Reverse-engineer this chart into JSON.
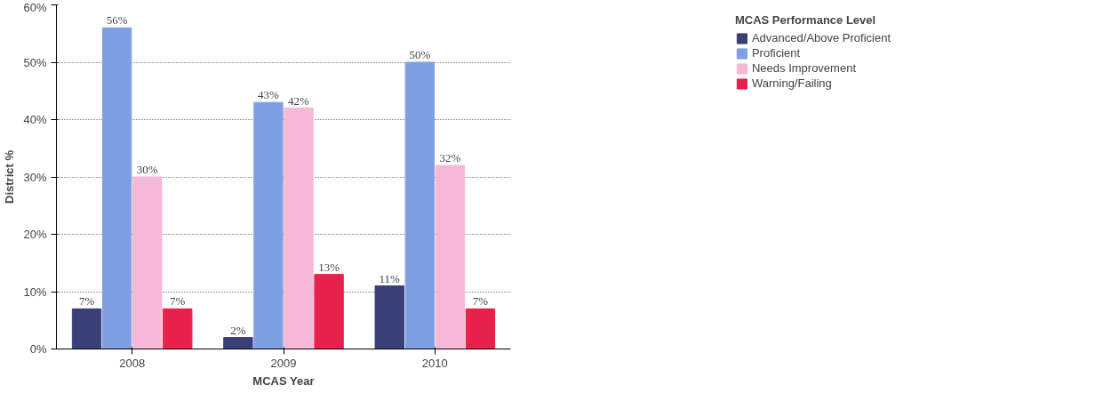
{
  "chart_data": {
    "type": "bar",
    "xlabel": "MCAS Year",
    "ylabel": "District %",
    "legend_title": "MCAS Performance Level",
    "categories": [
      "2008",
      "2009",
      "2010"
    ],
    "series": [
      {
        "name": "Advanced/Above Proficient",
        "color": "#3b3f78",
        "values": [
          7,
          2,
          11
        ],
        "value_labels": [
          "7%",
          "2%",
          "11%"
        ]
      },
      {
        "name": "Proficient",
        "color": "#7f9fe3",
        "values": [
          56,
          43,
          50
        ],
        "value_labels": [
          "56%",
          "43%",
          "50%"
        ]
      },
      {
        "name": "Needs Improvement",
        "color": "#f5b9d6",
        "values": [
          30,
          42,
          32
        ],
        "value_labels": [
          "30%",
          "42%",
          "32%"
        ]
      },
      {
        "name": "Warning/Failing",
        "color": "#e8214c",
        "values": [
          7,
          13,
          7
        ],
        "value_labels": [
          "7%",
          "13%",
          "7%"
        ]
      }
    ],
    "ylim": [
      0,
      60
    ],
    "yticks": [
      {
        "value": 0,
        "label": "0%"
      },
      {
        "value": 10,
        "label": "10%"
      },
      {
        "value": 20,
        "label": "20%"
      },
      {
        "value": 30,
        "label": "30%"
      },
      {
        "value": 40,
        "label": "40%"
      },
      {
        "value": 50,
        "label": "50%"
      },
      {
        "value": 60,
        "label": "60%"
      }
    ],
    "grid": "y",
    "legend": "top right"
  }
}
